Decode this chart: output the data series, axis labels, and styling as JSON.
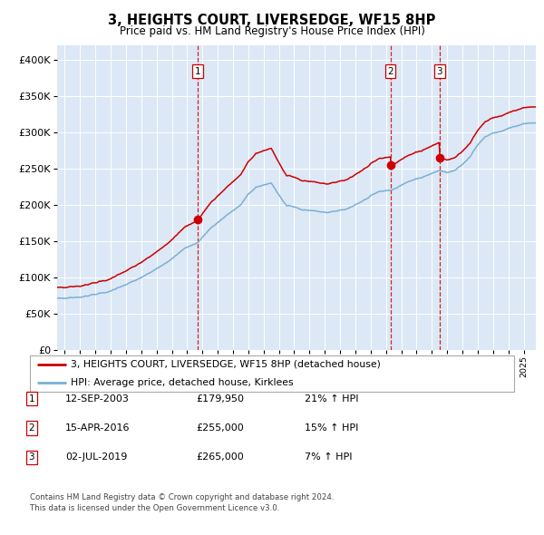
{
  "title": "3, HEIGHTS COURT, LIVERSEDGE, WF15 8HP",
  "subtitle": "Price paid vs. HM Land Registry's House Price Index (HPI)",
  "legend_line1": "3, HEIGHTS COURT, LIVERSEDGE, WF15 8HP (detached house)",
  "legend_line2": "HPI: Average price, detached house, Kirklees",
  "footer1": "Contains HM Land Registry data © Crown copyright and database right 2024.",
  "footer2": "This data is licensed under the Open Government Licence v3.0.",
  "sales": [
    {
      "label": "1",
      "date": "12-SEP-2003",
      "price": 179950,
      "pct": "21%",
      "dir": "↑"
    },
    {
      "label": "2",
      "date": "15-APR-2016",
      "price": 255000,
      "pct": "15%",
      "dir": "↑"
    },
    {
      "label": "3",
      "date": "02-JUL-2019",
      "price": 265000,
      "pct": "7%",
      "dir": "↑"
    }
  ],
  "sale_dates_decimal": [
    2003.71,
    2016.29,
    2019.5
  ],
  "sale_prices": [
    179950,
    255000,
    265000
  ],
  "hpi_color": "#7ab0d4",
  "price_color": "#cc0000",
  "vline_color": "#cc0000",
  "plot_bg": "#dce8f5",
  "grid_color": "#ffffff",
  "fig_bg": "#ffffff",
  "ylim": [
    0,
    420000
  ],
  "yticks": [
    0,
    50000,
    100000,
    150000,
    200000,
    250000,
    300000,
    350000,
    400000
  ],
  "xmin": 1994.5,
  "xmax": 2025.8,
  "xtick_years": [
    1995,
    1996,
    1997,
    1998,
    1999,
    2000,
    2001,
    2002,
    2003,
    2004,
    2005,
    2006,
    2007,
    2008,
    2009,
    2010,
    2011,
    2012,
    2013,
    2014,
    2015,
    2016,
    2017,
    2018,
    2019,
    2020,
    2021,
    2022,
    2023,
    2024,
    2025
  ]
}
